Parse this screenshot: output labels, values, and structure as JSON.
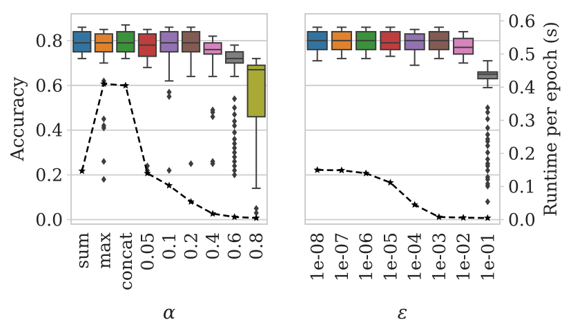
{
  "chart_data": [
    {
      "type": "box",
      "panel": "left",
      "xlabel": "α",
      "ylabel": "Accuracy",
      "ylim": [
        -0.02,
        0.92
      ],
      "yticks": [
        0.0,
        0.2,
        0.4,
        0.6,
        0.8
      ],
      "categories": [
        "sum",
        "max",
        "concat",
        "0.05",
        "0.1",
        "0.2",
        "0.4",
        "0.6",
        "0.8"
      ],
      "colors": [
        "#3274a1",
        "#e1812c",
        "#3a923a",
        "#c03d3e",
        "#9372b2",
        "#845b53",
        "#d684bd",
        "#7f7f7f",
        "#a9aa35"
      ],
      "boxes": [
        {
          "whislo": 0.72,
          "q1": 0.75,
          "med": 0.79,
          "q3": 0.84,
          "whishi": 0.86,
          "fliers": []
        },
        {
          "whislo": 0.7,
          "q1": 0.75,
          "med": 0.79,
          "q3": 0.83,
          "whishi": 0.85,
          "fliers": [
            0.62,
            0.45,
            0.42,
            0.41,
            0.26,
            0.18
          ]
        },
        {
          "whislo": 0.72,
          "q1": 0.75,
          "med": 0.79,
          "q3": 0.84,
          "whishi": 0.87,
          "fliers": []
        },
        {
          "whislo": 0.68,
          "q1": 0.73,
          "med": 0.78,
          "q3": 0.83,
          "whishi": 0.85,
          "fliers": [
            0.24,
            0.22
          ]
        },
        {
          "whislo": 0.62,
          "q1": 0.75,
          "med": 0.79,
          "q3": 0.84,
          "whishi": 0.86,
          "fliers": [
            0.57,
            0.55,
            0.22
          ]
        },
        {
          "whislo": 0.64,
          "q1": 0.75,
          "med": 0.79,
          "q3": 0.84,
          "whishi": 0.86,
          "fliers": [
            0.25
          ]
        },
        {
          "whislo": 0.64,
          "q1": 0.74,
          "med": 0.76,
          "q3": 0.79,
          "whishi": 0.82,
          "fliers": [
            0.49,
            0.48,
            0.46,
            0.26,
            0.25
          ]
        },
        {
          "whislo": 0.64,
          "q1": 0.7,
          "med": 0.72,
          "q3": 0.75,
          "whishi": 0.78,
          "fliers": [
            0.54,
            0.5,
            0.47,
            0.44,
            0.42,
            0.39,
            0.36,
            0.34,
            0.32,
            0.3,
            0.28,
            0.26,
            0.24,
            0.22,
            0.2
          ]
        },
        {
          "whislo": 0.14,
          "q1": 0.46,
          "med": 0.67,
          "q3": 0.69,
          "whishi": 0.72,
          "fliers": [
            0.05,
            0.03
          ]
        }
      ],
      "runtime_axis": {
        "ylabel": "Runtime per epoch (s)",
        "ylim": [
          -0.0135,
          0.6215
        ],
        "yticks": [
          0.0,
          0.1,
          0.2,
          0.3,
          0.4,
          0.5,
          0.6
        ],
        "show_ticklabels": false,
        "values": [
          0.147,
          0.41,
          0.405,
          0.14,
          0.103,
          0.054,
          0.018,
          0.008,
          0.005
        ]
      }
    },
    {
      "type": "box",
      "panel": "right",
      "xlabel": "ε",
      "ylabel": "",
      "ylim": [
        -0.02,
        0.92
      ],
      "yticks": [
        0.0,
        0.2,
        0.4,
        0.6,
        0.8
      ],
      "categories": [
        "1e-08",
        "1e-07",
        "1e-06",
        "1e-05",
        "1e-04",
        "1e-03",
        "1e-02",
        "1e-01"
      ],
      "colors": [
        "#3274a1",
        "#e1812c",
        "#3a923a",
        "#c03d3e",
        "#9372b2",
        "#845b53",
        "#d684bd",
        "#7f7f7f"
      ],
      "boxes": [
        {
          "whislo": 0.71,
          "q1": 0.76,
          "med": 0.8,
          "q3": 0.84,
          "whishi": 0.86,
          "fliers": []
        },
        {
          "whislo": 0.72,
          "q1": 0.76,
          "med": 0.8,
          "q3": 0.84,
          "whishi": 0.86,
          "fliers": []
        },
        {
          "whislo": 0.72,
          "q1": 0.76,
          "med": 0.8,
          "q3": 0.84,
          "whishi": 0.86,
          "fliers": []
        },
        {
          "whislo": 0.73,
          "q1": 0.76,
          "med": 0.79,
          "q3": 0.84,
          "whishi": 0.86,
          "fliers": []
        },
        {
          "whislo": 0.69,
          "q1": 0.76,
          "med": 0.8,
          "q3": 0.83,
          "whishi": 0.85,
          "fliers": []
        },
        {
          "whislo": 0.72,
          "q1": 0.76,
          "med": 0.8,
          "q3": 0.84,
          "whishi": 0.86,
          "fliers": []
        },
        {
          "whislo": 0.7,
          "q1": 0.74,
          "med": 0.77,
          "q3": 0.81,
          "whishi": 0.84,
          "fliers": []
        },
        {
          "whislo": 0.59,
          "q1": 0.63,
          "med": 0.65,
          "q3": 0.66,
          "whishi": 0.71,
          "fliers": [
            0.5,
            0.48,
            0.45,
            0.41,
            0.38,
            0.36,
            0.35,
            0.33,
            0.3,
            0.27,
            0.25,
            0.24,
            0.22,
            0.19,
            0.18,
            0.16,
            0.15,
            0.08
          ]
        }
      ],
      "runtime_axis": {
        "ylabel": "Runtime per epoch (s)",
        "ylim": [
          -0.0135,
          0.6215
        ],
        "yticks": [
          0.0,
          0.1,
          0.2,
          0.3,
          0.4,
          0.5,
          0.6
        ],
        "show_ticklabels": true,
        "values": [
          0.15,
          0.149,
          0.14,
          0.112,
          0.045,
          0.008,
          0.006,
          0.005
        ]
      }
    }
  ]
}
